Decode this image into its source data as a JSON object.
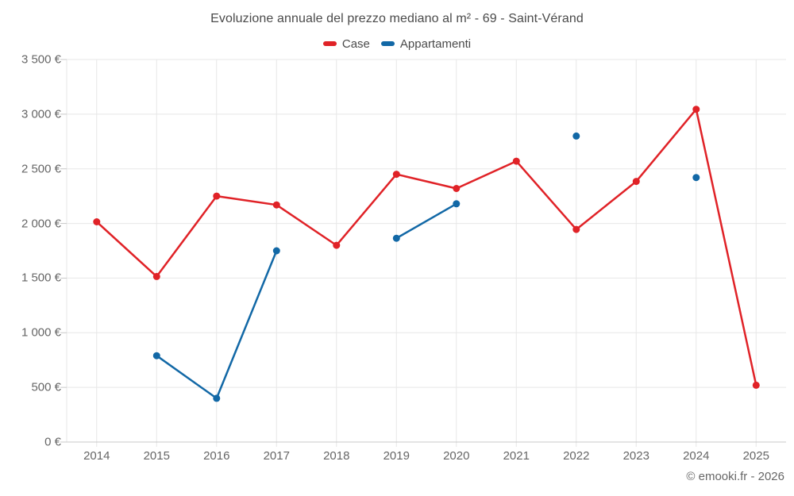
{
  "footer": {
    "copyright": "© emooki.fr - 2026"
  },
  "chart_data": {
    "type": "line",
    "title": "Evoluzione annuale del prezzo mediano al m² - 69 - Saint-Vérand",
    "categories": [
      "2014",
      "2015",
      "2016",
      "2017",
      "2018",
      "2019",
      "2020",
      "2021",
      "2022",
      "2023",
      "2024",
      "2025"
    ],
    "series": [
      {
        "name": "Case",
        "color": "#e02227",
        "values": [
          2015,
          1515,
          2250,
          2170,
          1800,
          2450,
          2320,
          2570,
          1945,
          2385,
          3045,
          520
        ]
      },
      {
        "name": "Appartamenti",
        "color": "#1268a6",
        "values": [
          null,
          790,
          400,
          1750,
          null,
          1865,
          2180,
          null,
          2800,
          null,
          2420,
          null
        ]
      }
    ],
    "xlabel": "",
    "ylabel": "",
    "ylim": [
      0,
      3500
    ],
    "y_ticks": [
      0,
      500,
      1000,
      1500,
      2000,
      2500,
      3000,
      3500
    ],
    "y_tick_labels": [
      "0 €",
      "500 €",
      "1 000 €",
      "1 500 €",
      "2 000 €",
      "2 500 €",
      "3 000 €",
      "3 500 €"
    ],
    "grid": true,
    "legend_position": "top",
    "gridline_color": "#e7e7e7",
    "axis_color": "#c8c8c8",
    "marker_radius": 4.5,
    "line_width": 2.5
  }
}
